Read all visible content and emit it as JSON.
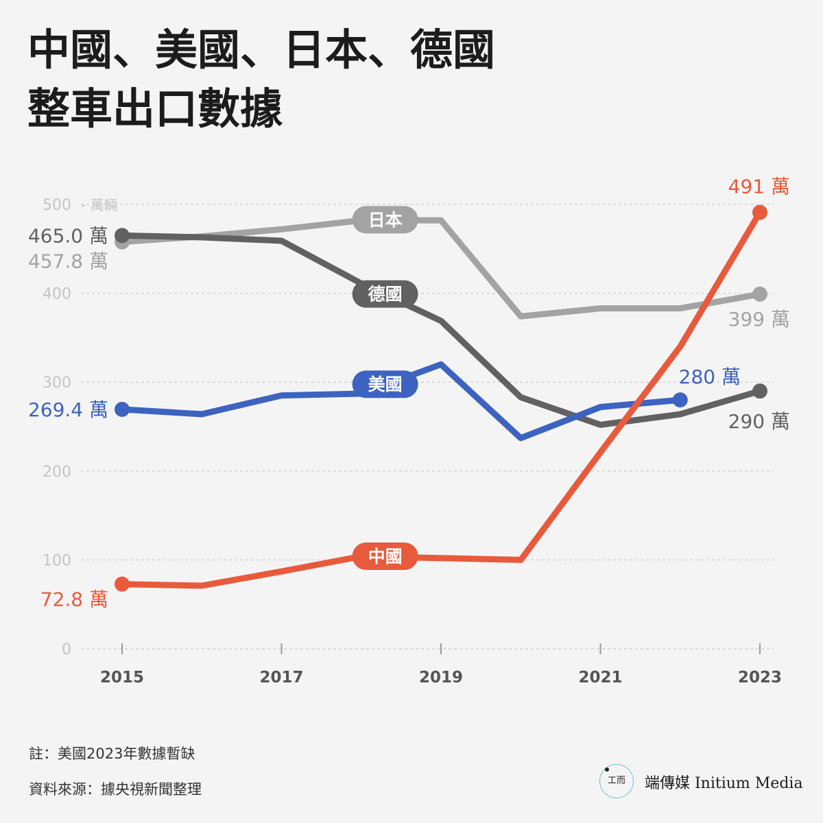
{
  "title": {
    "line1": "中國、美國、日本、德國",
    "line2": "整車出口數據"
  },
  "notes": {
    "note": "註：美國2023年數據暫缺",
    "source": "資料來源：據央視新聞整理"
  },
  "brand": {
    "mark": "工而",
    "name": "端傳媒 Initium Media"
  },
  "chart_data": {
    "type": "line",
    "unit_label": "萬輛",
    "ylim": [
      0,
      500
    ],
    "yticks": [
      0,
      100,
      200,
      300,
      400,
      500
    ],
    "xlim": [
      2015,
      2023
    ],
    "xticks": [
      2015,
      2017,
      2019,
      2021,
      2023
    ],
    "grid": true,
    "x": [
      2015,
      2016,
      2017,
      2018,
      2019,
      2020,
      2021,
      2022,
      2023
    ],
    "series": [
      {
        "name": "日本",
        "color": "#a3a3a3",
        "values": [
          457.8,
          464,
          472,
          482,
          482,
          374,
          383,
          383,
          399
        ],
        "start_label": "457.8 萬",
        "end_label": "399 萬"
      },
      {
        "name": "德國",
        "color": "#616161",
        "values": [
          465.0,
          463,
          459,
          411,
          369,
          283,
          252,
          264,
          290
        ],
        "start_label": "465.0 萬",
        "end_label": "290 萬"
      },
      {
        "name": "美國",
        "color": "#3d63c0",
        "values": [
          269.4,
          264,
          285,
          287,
          320,
          237,
          272,
          280,
          null
        ],
        "start_label": "269.4 萬",
        "end_label": "280 萬"
      },
      {
        "name": "中國",
        "color": "#e85a3c",
        "values": [
          72.8,
          71,
          87,
          104,
          102,
          100,
          221,
          340,
          491
        ],
        "start_label": "72.8 萬",
        "end_label": "491 萬"
      }
    ]
  }
}
